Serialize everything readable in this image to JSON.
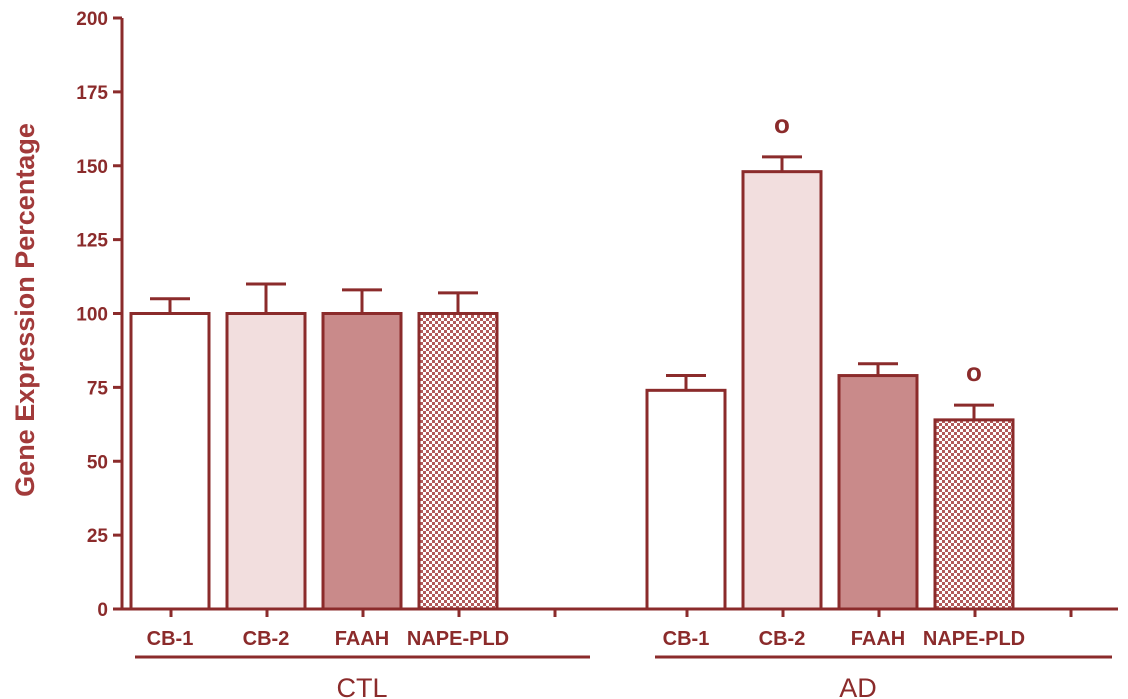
{
  "chart_data": {
    "type": "bar",
    "title": "",
    "ylabel": "Gene Expression Percentage",
    "xlabel": "",
    "ylim": [
      0,
      200
    ],
    "yticks": [
      0,
      25,
      50,
      75,
      100,
      125,
      150,
      175,
      200
    ],
    "grid": false,
    "categories": [
      "CB-1",
      "CB-2",
      "FAAH",
      "NAPE-PLD"
    ],
    "groups": [
      {
        "name": "CTL",
        "bars": [
          {
            "label": "CB-1",
            "value": 100,
            "error": 5,
            "mark": ""
          },
          {
            "label": "CB-2",
            "value": 100,
            "error": 10,
            "mark": ""
          },
          {
            "label": "FAAH",
            "value": 100,
            "error": 8,
            "mark": ""
          },
          {
            "label": "NAPE-PLD",
            "value": 100,
            "error": 7,
            "mark": ""
          }
        ]
      },
      {
        "name": "AD",
        "bars": [
          {
            "label": "CB-1",
            "value": 74,
            "error": 5,
            "mark": ""
          },
          {
            "label": "CB-2",
            "value": 148,
            "error": 5,
            "mark": "o"
          },
          {
            "label": "FAAH",
            "value": 79,
            "error": 4,
            "mark": ""
          },
          {
            "label": "NAPE-PLD",
            "value": 64,
            "error": 5,
            "mark": "o"
          }
        ]
      }
    ],
    "colors": {
      "axis": "#8b2b2b",
      "cb1_fill": "#ffffff",
      "cb2_fill": "#f2dede",
      "faah_fill": "#c98a8a",
      "nape_pattern": "crosshatch"
    }
  }
}
